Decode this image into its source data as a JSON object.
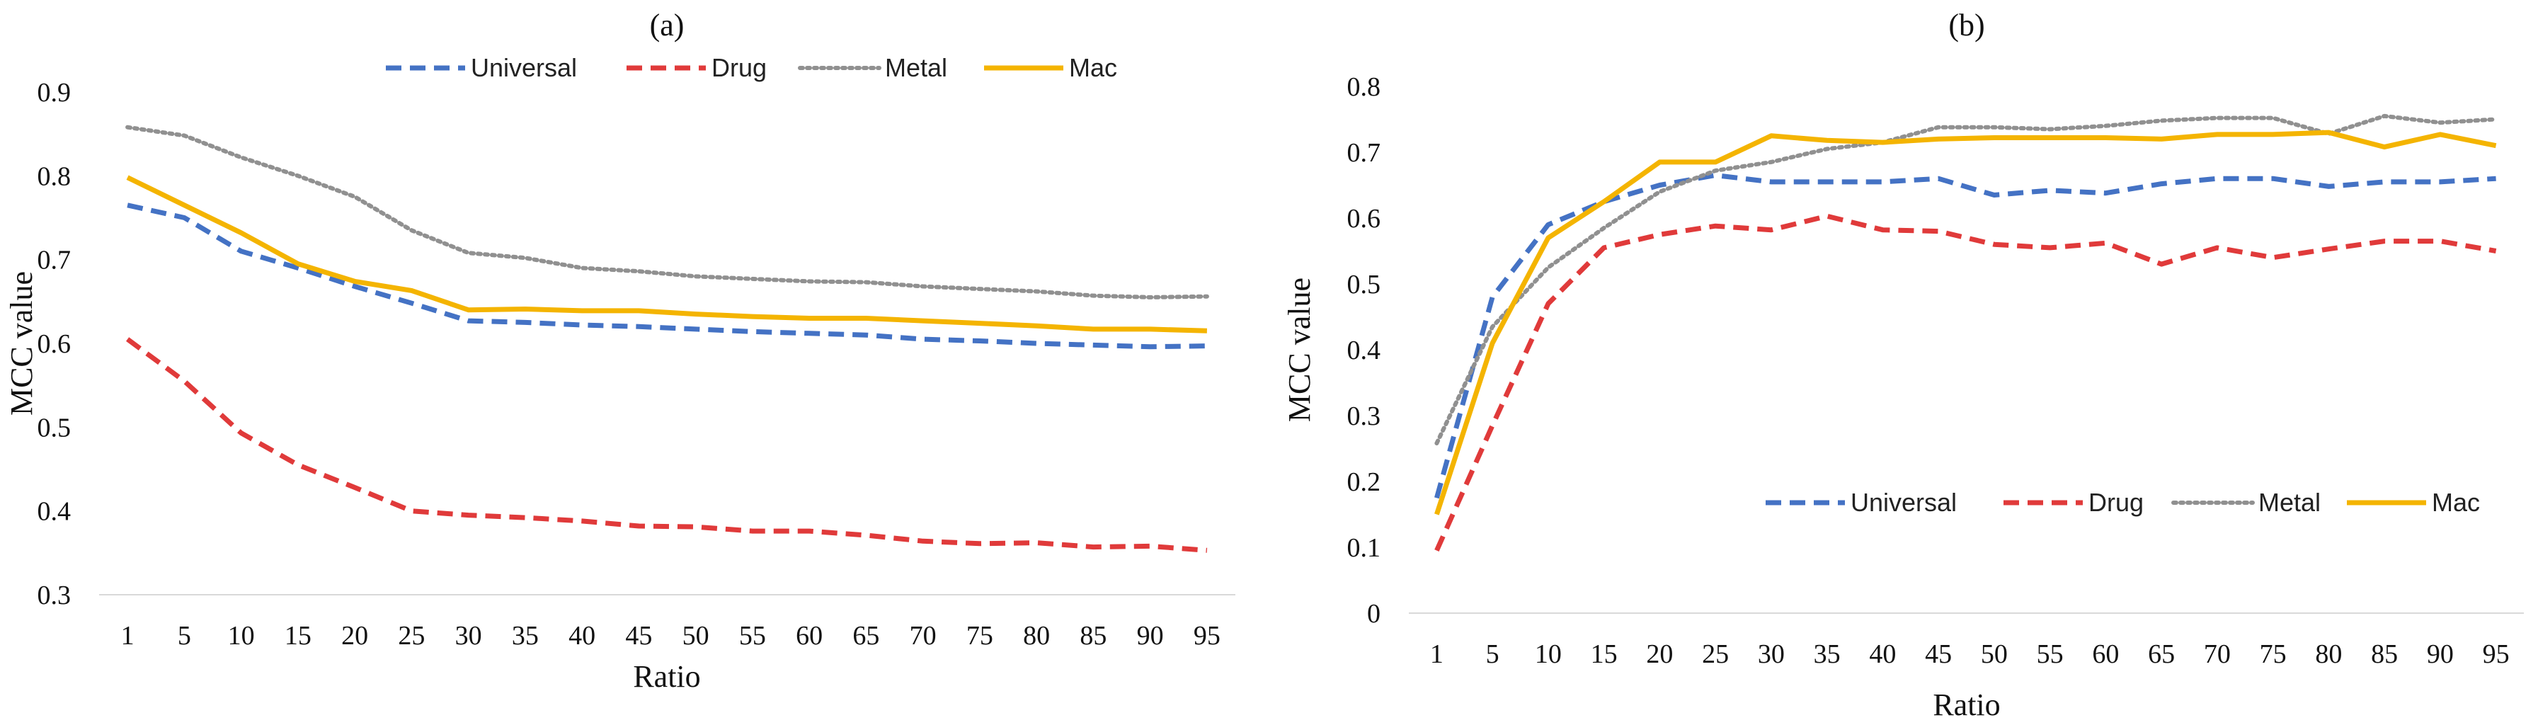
{
  "chart_data": [
    {
      "id": "a",
      "title": "(a)",
      "type": "line",
      "xlabel": "Ratio",
      "ylabel": "MCC value",
      "categories": [
        "1",
        "5",
        "10",
        "15",
        "20",
        "25",
        "30",
        "35",
        "40",
        "45",
        "50",
        "55",
        "60",
        "65",
        "70",
        "75",
        "80",
        "85",
        "90",
        "95"
      ],
      "ylim": [
        0.3,
        0.9
      ],
      "yticks": [
        "0.3",
        "0.4",
        "0.5",
        "0.6",
        "0.7",
        "0.8",
        "0.9"
      ],
      "grid": false,
      "legend_position": "top-right",
      "series": [
        {
          "name": "Universal",
          "color": "#4472c4",
          "dash": "dashed",
          "values": [
            0.765,
            0.75,
            0.71,
            0.69,
            0.668,
            0.648,
            0.627,
            0.625,
            0.622,
            0.62,
            0.617,
            0.614,
            0.612,
            0.61,
            0.605,
            0.603,
            0.6,
            0.598,
            0.596,
            0.597
          ]
        },
        {
          "name": "Drug",
          "color": "#e03a3a",
          "dash": "dashed",
          "values": [
            0.605,
            0.555,
            0.493,
            0.455,
            0.428,
            0.4,
            0.395,
            0.392,
            0.388,
            0.382,
            0.381,
            0.376,
            0.376,
            0.371,
            0.364,
            0.361,
            0.362,
            0.357,
            0.358,
            0.353
          ]
        },
        {
          "name": "Metal",
          "color": "#909090",
          "dash": "dotted",
          "values": [
            0.858,
            0.848,
            0.822,
            0.8,
            0.775,
            0.735,
            0.708,
            0.702,
            0.69,
            0.686,
            0.68,
            0.677,
            0.674,
            0.673,
            0.668,
            0.665,
            0.662,
            0.657,
            0.655,
            0.656
          ]
        },
        {
          "name": "Mac",
          "color": "#f4b400",
          "dash": "solid",
          "values": [
            0.798,
            0.765,
            0.732,
            0.695,
            0.674,
            0.663,
            0.64,
            0.641,
            0.639,
            0.639,
            0.635,
            0.632,
            0.63,
            0.63,
            0.627,
            0.624,
            0.621,
            0.617,
            0.617,
            0.615
          ]
        }
      ]
    },
    {
      "id": "b",
      "title": "(b)",
      "type": "line",
      "xlabel": "Ratio",
      "ylabel": "MCC value",
      "categories": [
        "1",
        "5",
        "10",
        "15",
        "20",
        "25",
        "30",
        "35",
        "40",
        "45",
        "50",
        "55",
        "60",
        "65",
        "70",
        "75",
        "80",
        "85",
        "90",
        "95"
      ],
      "ylim": [
        0,
        0.8
      ],
      "yticks": [
        "0",
        "0.1",
        "0.2",
        "0.3",
        "0.4",
        "0.5",
        "0.6",
        "0.7",
        "0.8"
      ],
      "grid": false,
      "legend_position": "bottom-right",
      "series": [
        {
          "name": "Universal",
          "color": "#4472c4",
          "dash": "dashed",
          "values": [
            0.175,
            0.48,
            0.59,
            0.625,
            0.65,
            0.665,
            0.655,
            0.655,
            0.655,
            0.66,
            0.635,
            0.642,
            0.638,
            0.652,
            0.66,
            0.66,
            0.648,
            0.655,
            0.655,
            0.66
          ]
        },
        {
          "name": "Drug",
          "color": "#e03a3a",
          "dash": "dashed",
          "values": [
            0.095,
            0.285,
            0.47,
            0.555,
            0.575,
            0.588,
            0.582,
            0.603,
            0.582,
            0.58,
            0.56,
            0.555,
            0.562,
            0.53,
            0.555,
            0.54,
            0.553,
            0.565,
            0.565,
            0.55
          ]
        },
        {
          "name": "Metal",
          "color": "#909090",
          "dash": "dotted",
          "values": [
            0.258,
            0.435,
            0.525,
            0.585,
            0.64,
            0.672,
            0.685,
            0.705,
            0.715,
            0.738,
            0.738,
            0.735,
            0.74,
            0.748,
            0.752,
            0.752,
            0.728,
            0.755,
            0.745,
            0.75
          ]
        },
        {
          "name": "Mac",
          "color": "#f4b400",
          "dash": "solid",
          "values": [
            0.15,
            0.41,
            0.57,
            0.625,
            0.685,
            0.685,
            0.725,
            0.718,
            0.715,
            0.72,
            0.722,
            0.722,
            0.722,
            0.72,
            0.727,
            0.727,
            0.73,
            0.708,
            0.727,
            0.71
          ]
        }
      ]
    }
  ]
}
